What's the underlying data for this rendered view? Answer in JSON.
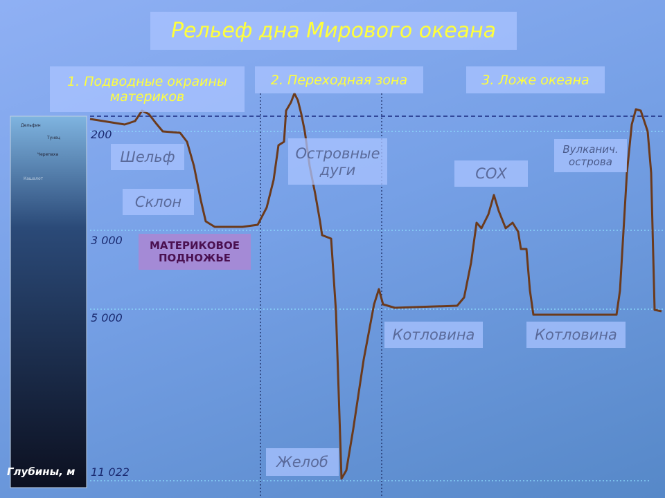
{
  "title": "Рельеф дна Мирового океана",
  "zones": [
    "1. Подводные окраины материков",
    "2. Переходная зона",
    "3. Ложе океана"
  ],
  "features": {
    "shelf": "Шельф",
    "slope": "Склон",
    "foot": "МАТЕРИКОВОЕ ПОДНОЖЬЕ",
    "island_arcs": "Островные дуги",
    "trench": "Желоб",
    "basin_1": "Котловина",
    "ridge": "СОХ",
    "volcanic_islands": "Вулканич. острова",
    "basin_2": "Котловина"
  },
  "depths": [
    "200",
    "3 000",
    "5 000",
    "11 022"
  ],
  "axis_label": "Глубины, м",
  "animals": [
    "Дельфин",
    "Тунец",
    "Черепаха",
    "Кашалот"
  ]
}
